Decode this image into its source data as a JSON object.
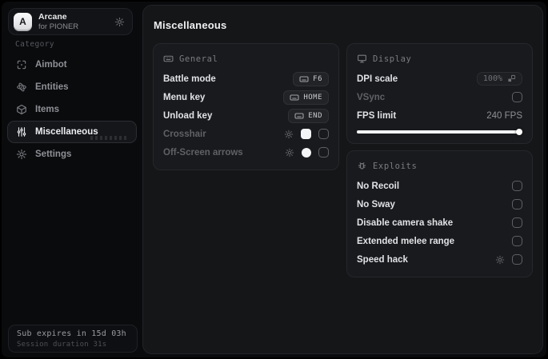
{
  "app": {
    "name": "Arcane",
    "subtitle": "for PIONER",
    "logo_letter": "A"
  },
  "colors": {
    "background": "#0a0b0d",
    "panel": "#151618",
    "card": "#191a1d",
    "accent": "#f2f3f5"
  },
  "sidebar": {
    "category_label": "Category",
    "items": [
      {
        "label": "Aimbot",
        "icon": "crosshair-scan-icon",
        "active": false
      },
      {
        "label": "Entities",
        "icon": "atom-icon",
        "active": false
      },
      {
        "label": "Items",
        "icon": "box-icon",
        "active": false
      },
      {
        "label": "Miscellaneous",
        "icon": "sliders-icon",
        "active": true
      },
      {
        "label": "Settings",
        "icon": "gear-icon",
        "active": false
      }
    ],
    "footer": {
      "sub_expires": "Sub expires in 15d 03h",
      "session_duration": "Session duration 31s"
    }
  },
  "main": {
    "title": "Miscellaneous",
    "general": {
      "header": "General",
      "battle_mode_label": "Battle mode",
      "battle_mode_key": "F6",
      "menu_key_label": "Menu key",
      "menu_key_key": "HOME",
      "unload_key_label": "Unload key",
      "unload_key_key": "END",
      "crosshair_label": "Crosshair",
      "crosshair_enabled": false,
      "offscreen_label": "Off-Screen arrows",
      "offscreen_enabled": false
    },
    "display": {
      "header": "Display",
      "dpi_label": "DPI scale",
      "dpi_value": "100%",
      "vsync_label": "VSync",
      "vsync_checked": false,
      "fps_label": "FPS limit",
      "fps_value": "240 FPS",
      "fps_percent": 98
    },
    "exploits": {
      "header": "Exploits",
      "rows": [
        "No Recoil",
        "No Sway",
        "Disable camera shake",
        "Extended melee range",
        "Speed hack"
      ],
      "checked": [
        false,
        false,
        false,
        false,
        false
      ]
    }
  }
}
